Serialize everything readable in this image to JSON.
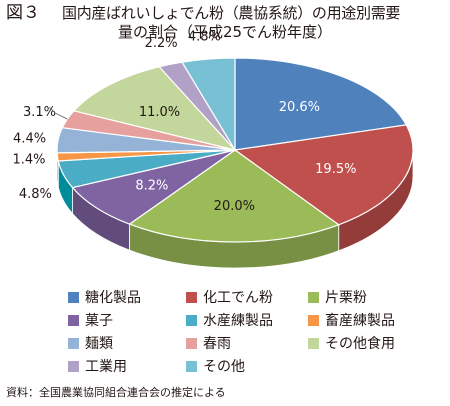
{
  "figure_label": "図３",
  "title_line1": "国内産ばれいしょでん粉（農協系統）の用途別需要",
  "title_line2": "量の割合（平成25でん粉年度）",
  "source": "資料：全国農業協同組合連合会の推定による",
  "chart_data": {
    "type": "pie",
    "title": "国内産ばれいしょでん粉（農協系統）の用途別需要量の割合（平成25でん粉年度）",
    "three_d": true,
    "legend_position": "bottom",
    "slices": [
      {
        "name": "糖化製品",
        "value": 20.6,
        "label": "20.6%",
        "color": "#4f81bd",
        "side": "#3a6591"
      },
      {
        "name": "化工でん粉",
        "value": 19.5,
        "label": "19.5%",
        "color": "#c0504d",
        "side": "#933c39"
      },
      {
        "name": "片栗粉",
        "value": 20.0,
        "label": "20.0%",
        "color": "#9bbb59",
        "side": "#779043"
      },
      {
        "name": "菓子",
        "value": 8.2,
        "label": "8.2%",
        "color": "#8064a2",
        "side": "#624c7c"
      },
      {
        "name": "水産練製品",
        "value": 4.8,
        "label": "4.8%",
        "color": "#4bacc6",
        "side": "#008b9b"
      },
      {
        "name": "畜産練製品",
        "value": 1.4,
        "label": "1.4%",
        "color": "#f79646",
        "side": "#c06d27"
      },
      {
        "name": "麺類",
        "value": 4.4,
        "label": "4.4%",
        "color": "#95b3d7",
        "side": "#7291b3"
      },
      {
        "name": "春雨",
        "value": 3.1,
        "label": "3.1%",
        "color": "#e6a09e",
        "side": "#b87c7a"
      },
      {
        "name": "その他食用",
        "value": 11.0,
        "label": "11.0%",
        "color": "#c3d69b",
        "side": "#9aae73"
      },
      {
        "name": "工業用",
        "value": 2.2,
        "label": "2.2%",
        "color": "#b2a1c7",
        "side": "#8c7ca0"
      },
      {
        "name": "その他",
        "value": 4.8,
        "label": "4.8%",
        "color": "#78c0d3",
        "side": "#5a9aab"
      }
    ]
  }
}
